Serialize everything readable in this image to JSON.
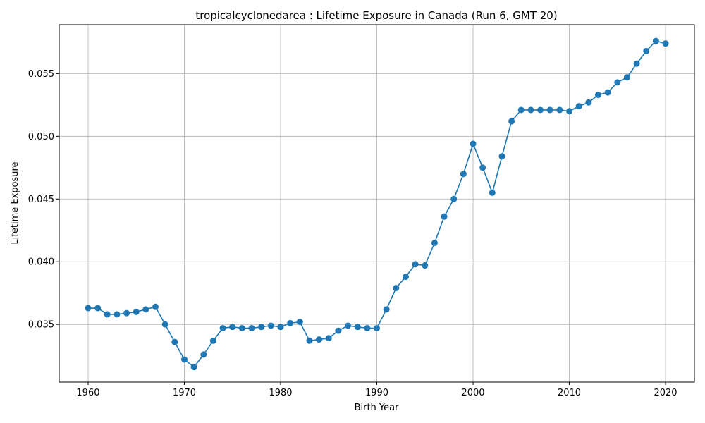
{
  "chart_data": {
    "type": "line",
    "title": "tropicalcyclonedarea : Lifetime Exposure in Canada (Run 6, GMT 20)",
    "xlabel": "Birth Year",
    "ylabel": "Lifetime Exposure",
    "xlim": [
      1957,
      2023
    ],
    "ylim": [
      0.0304,
      0.0589
    ],
    "x_ticks": [
      1960,
      1970,
      1980,
      1990,
      2000,
      2010,
      2020
    ],
    "y_ticks": [
      0.035,
      0.04,
      0.045,
      0.05,
      0.055
    ],
    "y_tick_labels": [
      "0.035",
      "0.040",
      "0.045",
      "0.050",
      "0.055"
    ],
    "grid": true,
    "color": "#1f77b4",
    "x": [
      1960,
      1961,
      1962,
      1963,
      1964,
      1965,
      1966,
      1967,
      1968,
      1969,
      1970,
      1971,
      1972,
      1973,
      1974,
      1975,
      1976,
      1977,
      1978,
      1979,
      1980,
      1981,
      1982,
      1983,
      1984,
      1985,
      1986,
      1987,
      1988,
      1989,
      1990,
      1991,
      1992,
      1993,
      1994,
      1995,
      1996,
      1997,
      1998,
      1999,
      2000,
      2001,
      2002,
      2003,
      2004,
      2005,
      2006,
      2007,
      2008,
      2009,
      2010,
      2011,
      2012,
      2013,
      2014,
      2015,
      2016,
      2017,
      2018,
      2019,
      2020
    ],
    "y": [
      0.0363,
      0.0363,
      0.0358,
      0.0358,
      0.0359,
      0.036,
      0.0362,
      0.0364,
      0.035,
      0.0336,
      0.0322,
      0.0316,
      0.0326,
      0.0337,
      0.0347,
      0.0348,
      0.0347,
      0.0347,
      0.0348,
      0.0349,
      0.0348,
      0.0351,
      0.0352,
      0.0337,
      0.0338,
      0.0339,
      0.0345,
      0.0349,
      0.0348,
      0.0347,
      0.0347,
      0.0362,
      0.0379,
      0.0388,
      0.0398,
      0.0397,
      0.0415,
      0.0436,
      0.045,
      0.047,
      0.0494,
      0.0475,
      0.0455,
      0.0484,
      0.0512,
      0.0521,
      0.0521,
      0.0521,
      0.0521,
      0.0521,
      0.052,
      0.0524,
      0.0527,
      0.0533,
      0.0535,
      0.0543,
      0.0547,
      0.0558,
      0.0568,
      0.0576,
      0.0574
    ]
  }
}
